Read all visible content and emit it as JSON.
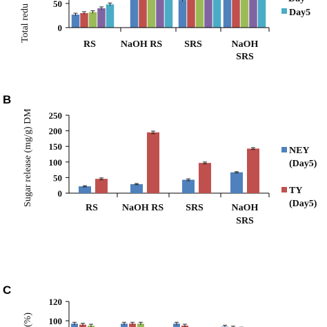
{
  "chart_data": [
    {
      "panel": "A",
      "type": "bar",
      "ylabel": "Total redu",
      "ylim_visible": [
        0,
        60
      ],
      "yticks": [
        "50",
        "0"
      ],
      "categories": [
        "RS",
        "NaOH RS",
        "SRS",
        "NaOH SRS"
      ],
      "category_lines": [
        [
          "RS"
        ],
        [
          "NaOH RS"
        ],
        [
          "SRS"
        ],
        [
          "NaOH",
          "SRS"
        ]
      ],
      "legend": [
        "Day",
        "Day5"
      ],
      "series": [
        {
          "color": "#4f81bd",
          "values": [
            27,
            100,
            57,
            100
          ]
        },
        {
          "color": "#c0504d",
          "values": [
            30,
            100,
            100,
            100
          ]
        },
        {
          "color": "#9bbb59",
          "values": [
            32,
            100,
            100,
            100
          ]
        },
        {
          "color": "#8064a2",
          "values": [
            40,
            100,
            100,
            100
          ]
        },
        {
          "name": "Day5",
          "color": "#4bacc6",
          "values": [
            48,
            100,
            100,
            100
          ]
        }
      ]
    },
    {
      "panel": "B",
      "type": "bar",
      "ylabel": "Sugar release (mg/g) DM",
      "ylim": [
        0,
        250
      ],
      "yticks": [
        "0",
        "50",
        "100",
        "150",
        "200",
        "250"
      ],
      "categories": [
        "RS",
        "NaOH RS",
        "SRS",
        "NaOH SRS"
      ],
      "category_lines": [
        [
          "RS"
        ],
        [
          "NaOH RS"
        ],
        [
          "SRS"
        ],
        [
          "NaOH",
          "SRS"
        ]
      ],
      "legend_lines": [
        [
          "NEY",
          "(Day5)"
        ],
        [
          "TY",
          "(Day5)"
        ]
      ],
      "series": [
        {
          "name": "NEY (Day5)",
          "color": "#4f81bd",
          "values": [
            22,
            29,
            43,
            67
          ],
          "errors": [
            2,
            2,
            3,
            2
          ]
        },
        {
          "name": "TY (Day5)",
          "color": "#c0504d",
          "values": [
            46,
            195,
            97,
            143
          ],
          "errors": [
            3,
            4,
            3,
            3
          ]
        }
      ]
    },
    {
      "panel": "C",
      "type": "bar",
      "ylabel": "(%)",
      "ylim_visible": [
        95,
        120
      ],
      "yticks": [
        "120",
        "100"
      ],
      "series": [
        {
          "color": "#4f81bd",
          "values": [
            97,
            97,
            97,
            94
          ]
        },
        {
          "color": "#c0504d",
          "values": [
            96,
            97,
            95,
            93
          ]
        },
        {
          "color": "#9bbb59",
          "values": [
            95,
            97,
            94,
            92
          ]
        }
      ]
    }
  ]
}
